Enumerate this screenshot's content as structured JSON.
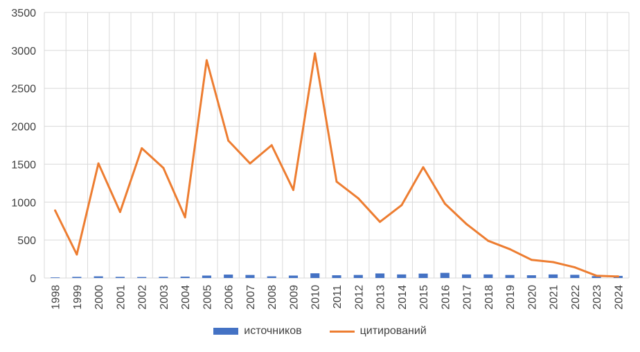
{
  "colors": {
    "bars": "#4472C4",
    "line": "#ED7D31",
    "grid": "#d9d9d9",
    "axis_text": "#404040"
  },
  "chart_data": {
    "type": "bar+line",
    "categories": [
      "1998",
      "1999",
      "2000",
      "2001",
      "2002",
      "2003",
      "2004",
      "2005",
      "2006",
      "2007",
      "2008",
      "2009",
      "2010",
      "2011",
      "2012",
      "2013",
      "2014",
      "2015",
      "2016",
      "2017",
      "2018",
      "2019",
      "2020",
      "2021",
      "2022",
      "2023",
      "2024"
    ],
    "series": [
      {
        "name": "источников",
        "type": "bar",
        "values": [
          8,
          15,
          22,
          15,
          13,
          15,
          18,
          32,
          45,
          40,
          22,
          32,
          62,
          36,
          40,
          60,
          47,
          58,
          68,
          47,
          47,
          40,
          36,
          47,
          42,
          25,
          28
        ]
      },
      {
        "name": "цитирований",
        "type": "line",
        "values": [
          890,
          310,
          1510,
          870,
          1710,
          1450,
          800,
          2870,
          1810,
          1510,
          1750,
          1160,
          2960,
          1270,
          1050,
          740,
          960,
          1460,
          980,
          710,
          490,
          380,
          240,
          210,
          140,
          30,
          20
        ]
      }
    ],
    "ylim": [
      0,
      3500
    ],
    "yticks": [
      0,
      500,
      1000,
      1500,
      2000,
      2500,
      3000,
      3500
    ],
    "grid": true,
    "legend_position": "bottom",
    "title": "",
    "xlabel": "",
    "ylabel": ""
  }
}
